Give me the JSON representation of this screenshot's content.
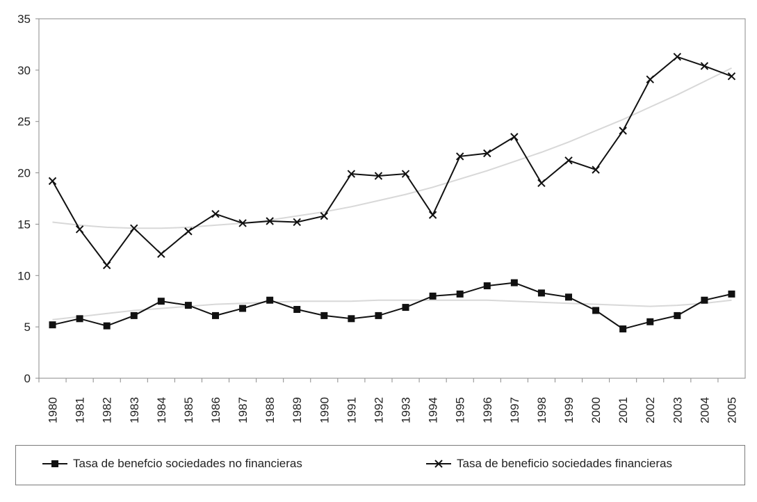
{
  "chart_data": {
    "type": "line",
    "title": "",
    "xlabel": "",
    "ylabel": "",
    "ylim": [
      0,
      35
    ],
    "yticks": [
      0,
      5,
      10,
      15,
      20,
      25,
      30,
      35
    ],
    "categories": [
      "1980",
      "1981",
      "1982",
      "1983",
      "1984",
      "1985",
      "1986",
      "1987",
      "1988",
      "1989",
      "1990",
      "1991",
      "1992",
      "1993",
      "1994",
      "1995",
      "1996",
      "1997",
      "1998",
      "1999",
      "2000",
      "2001",
      "2002",
      "2003",
      "2004",
      "2005"
    ],
    "series": [
      {
        "name": "Tasa de benefcio sociedades no financieras",
        "marker": "square",
        "color": "#111111",
        "values": [
          5.2,
          5.8,
          5.1,
          6.1,
          7.5,
          7.1,
          6.1,
          6.8,
          7.6,
          6.7,
          6.1,
          5.8,
          6.1,
          6.9,
          8.0,
          8.2,
          9.0,
          9.3,
          8.3,
          7.9,
          6.6,
          4.8,
          5.5,
          6.1,
          7.6,
          8.2
        ]
      },
      {
        "name": "Tasa de beneficio sociedades financieras",
        "marker": "x",
        "color": "#111111",
        "values": [
          19.2,
          14.5,
          11.0,
          14.6,
          12.1,
          14.3,
          16.0,
          15.1,
          15.3,
          15.2,
          15.8,
          19.9,
          19.7,
          19.9,
          15.9,
          21.6,
          21.9,
          23.5,
          19.0,
          21.2,
          20.3,
          24.1,
          29.1,
          31.3,
          30.4,
          29.4
        ]
      }
    ],
    "trendlines": [
      {
        "series": 0,
        "color": "#d8d8d8",
        "values": [
          5.7,
          6.0,
          6.3,
          6.6,
          6.8,
          7.0,
          7.2,
          7.3,
          7.4,
          7.5,
          7.5,
          7.5,
          7.6,
          7.6,
          7.6,
          7.6,
          7.6,
          7.5,
          7.4,
          7.3,
          7.2,
          7.1,
          7.0,
          7.1,
          7.3,
          7.6
        ]
      },
      {
        "series": 1,
        "color": "#d8d8d8",
        "values": [
          15.2,
          14.9,
          14.7,
          14.6,
          14.6,
          14.7,
          14.9,
          15.1,
          15.4,
          15.8,
          16.2,
          16.7,
          17.3,
          17.9,
          18.6,
          19.4,
          20.2,
          21.1,
          22.0,
          23.0,
          24.1,
          25.2,
          26.4,
          27.6,
          28.9,
          30.2
        ]
      }
    ],
    "grid": false,
    "legend": "bottom"
  },
  "legend": {
    "items": [
      "Tasa de benefcio sociedades no financieras",
      "Tasa de beneficio sociedades financieras"
    ]
  }
}
